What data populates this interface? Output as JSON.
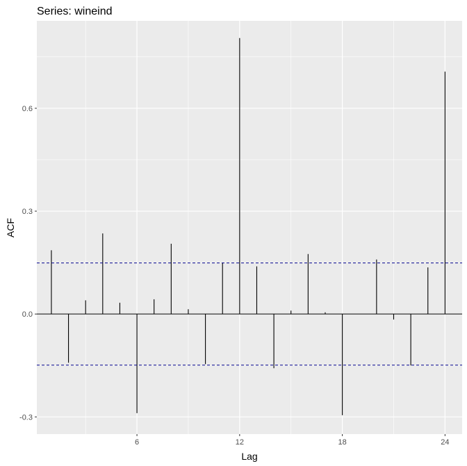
{
  "chart_data": {
    "type": "bar",
    "title": "Series: wineind",
    "xlabel": "Lag",
    "ylabel": "ACF",
    "x": [
      1,
      2,
      3,
      4,
      5,
      6,
      7,
      8,
      9,
      10,
      11,
      12,
      13,
      14,
      15,
      16,
      17,
      18,
      19,
      20,
      21,
      22,
      23,
      24
    ],
    "values": [
      0.186,
      -0.142,
      0.04,
      0.235,
      0.033,
      -0.289,
      0.043,
      0.205,
      0.014,
      -0.146,
      0.15,
      0.805,
      0.139,
      -0.158,
      0.01,
      0.175,
      0.005,
      -0.295,
      0.0,
      0.159,
      -0.016,
      -0.15,
      0.136,
      0.707
    ],
    "ci": 0.149,
    "xlim": [
      0.15,
      25.0
    ],
    "ylim": [
      -0.35,
      0.855
    ],
    "x_ticks": [
      6,
      12,
      18,
      24
    ],
    "x_tick_labels": [
      "6",
      "12",
      "18",
      "24"
    ],
    "y_ticks": [
      -0.3,
      0.0,
      0.3,
      0.6
    ],
    "y_tick_labels": [
      "-0.3",
      "0.0",
      "0.3",
      "0.6"
    ],
    "grid": true,
    "colors": {
      "panel": "#ebebeb",
      "grid": "#ffffff",
      "bar": "#000000",
      "ci_line": "#00008b"
    }
  }
}
